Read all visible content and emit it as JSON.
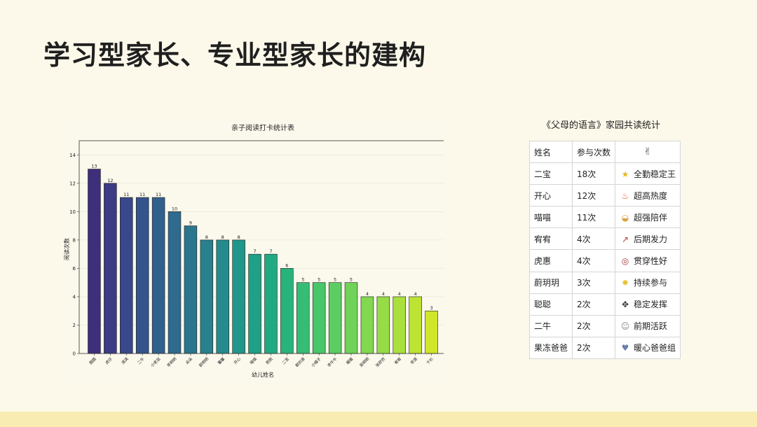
{
  "page": {
    "title": "学习型家长、专业型家长的建构"
  },
  "chart_data": {
    "type": "bar",
    "title": "亲子阅读打卡统计表",
    "xlabel": "幼儿姓名",
    "ylabel": "阅读次数",
    "ylim": [
      0,
      15
    ],
    "yticks": [
      0,
      2,
      4,
      6,
      8,
      10,
      12,
      14
    ],
    "grid": "y",
    "categories": [
      "圆圆",
      "虎仔",
      "淇淇",
      "二牛",
      "小老鼠",
      "李明明",
      "朵朵",
      "蔚明明",
      "馨馨",
      "开心",
      "喵喵",
      "熙熙",
      "二宝",
      "薪的源",
      "小橘子",
      "李牛牛",
      "暖暖",
      "吴明明",
      "张舒然",
      "宥宥",
      "李源",
      "千杉"
    ],
    "values": [
      13,
      12,
      11,
      11,
      11,
      10,
      9,
      8,
      8,
      8,
      7,
      7,
      6,
      5,
      5,
      5,
      5,
      4,
      4,
      4,
      4,
      3
    ],
    "colors": [
      "#3e2f7a",
      "#3b3c84",
      "#38488a",
      "#35548d",
      "#32608e",
      "#2e6b8e",
      "#2b768e",
      "#28818d",
      "#258b8c",
      "#21968a",
      "#1fa087",
      "#21aa82",
      "#29b37c",
      "#36bd74",
      "#48c66a",
      "#5bcd62",
      "#6fd359",
      "#82d84f",
      "#96dc46",
      "#aae03c",
      "#bde333",
      "#d0e62b"
    ]
  },
  "table": {
    "title": "《父母的语言》家园共读统计",
    "headers": [
      "姓名",
      "参与次数"
    ],
    "header_icon": "✌",
    "rows": [
      {
        "name": "二宝",
        "count": "18次",
        "icon": "★",
        "icon_name": "star-icon",
        "icon_color": "#e8b920",
        "badge": "全勤稳定王"
      },
      {
        "name": "开心",
        "count": "12次",
        "icon": "♨",
        "icon_name": "fire-icon",
        "icon_color": "#e8622a",
        "badge": "超高热度"
      },
      {
        "name": "喵喵",
        "count": "11次",
        "icon": "◒",
        "icon_name": "handshake-icon",
        "icon_color": "#d9a23b",
        "badge": "超强陪伴"
      },
      {
        "name": "宥宥",
        "count": "4次",
        "icon": "↗",
        "icon_name": "chart-up-icon",
        "icon_color": "#c0392b",
        "badge": "后期发力"
      },
      {
        "name": "虎惠",
        "count": "4次",
        "icon": "◎",
        "icon_name": "target-icon",
        "icon_color": "#a33a3a",
        "badge": "贯穿性好"
      },
      {
        "name": "蔚玥玥",
        "count": "3次",
        "icon": "✹",
        "icon_name": "sparkle-icon",
        "icon_color": "#e6c23a",
        "badge": "持续参与"
      },
      {
        "name": "聪聪",
        "count": "2次",
        "icon": "✥",
        "icon_name": "paw-icon",
        "icon_color": "#333333",
        "badge": "稳定发挥"
      },
      {
        "name": "二牛",
        "count": "2次",
        "icon": "☺",
        "icon_name": "face-icon",
        "icon_color": "#8a8a8a",
        "badge": "前期活跃"
      },
      {
        "name": "果冻爸爸",
        "count": "2次",
        "icon": "♥",
        "icon_name": "family-icon",
        "icon_color": "#6a7fa8",
        "badge": "暖心爸爸组"
      }
    ]
  }
}
